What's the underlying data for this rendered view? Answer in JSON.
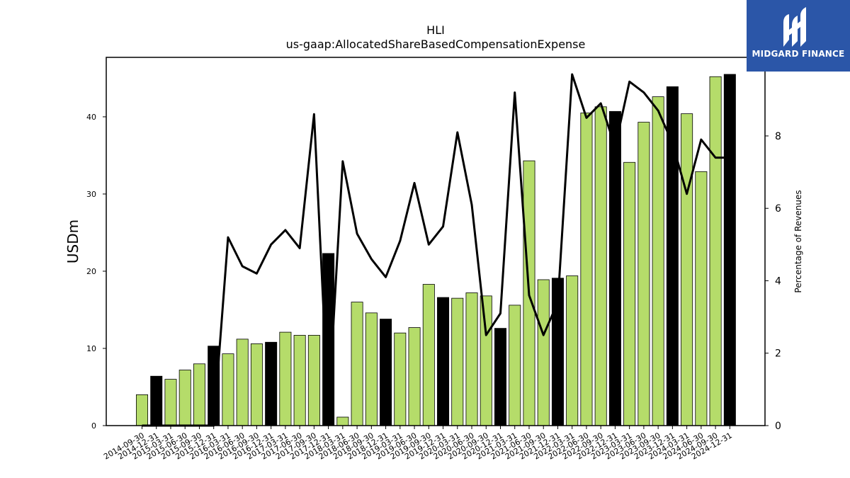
{
  "chart_data": {
    "type": "bar",
    "title": "HLI",
    "subtitle": "us-gaap:AllocatedShareBasedCompensationExpense",
    "ylabel": "USDm",
    "y2label": "Percentage of Revenues",
    "ylim": [
      0,
      47.7
    ],
    "y2lim": [
      0,
      10.17
    ],
    "yticks": [
      0,
      10,
      20,
      30,
      40
    ],
    "y2ticks": [
      0,
      2,
      4,
      6,
      8
    ],
    "categories": [
      "2014-09-30",
      "2014-12-31",
      "2015-03-31",
      "2015-06-30",
      "2015-09-30",
      "2015-12-31",
      "2016-03-31",
      "2016-06-30",
      "2016-09-30",
      "2016-12-31",
      "2017-03-31",
      "2017-06-30",
      "2017-09-30",
      "2017-12-31",
      "2018-03-31",
      "2018-06-30",
      "2018-09-30",
      "2018-12-31",
      "2019-03-31",
      "2019-06-30",
      "2019-09-30",
      "2019-12-31",
      "2020-03-31",
      "2020-06-30",
      "2020-09-30",
      "2020-12-31",
      "2021-03-31",
      "2021-06-30",
      "2021-09-30",
      "2021-12-31",
      "2022-03-31",
      "2022-06-30",
      "2022-09-30",
      "2022-12-31",
      "2023-03-31",
      "2023-06-30",
      "2023-09-30",
      "2023-12-31",
      "2024-03-31",
      "2024-06-30",
      "2024-09-30",
      "2024-12-31"
    ],
    "series": [
      {
        "type": "bar",
        "values": [
          4.0,
          6.4,
          6.0,
          7.2,
          8.0,
          10.3,
          9.3,
          11.2,
          10.6,
          10.8,
          12.1,
          11.7,
          11.7,
          22.3,
          1.1,
          16.0,
          14.6,
          13.8,
          12.0,
          12.7,
          18.3,
          16.6,
          16.5,
          17.2,
          16.8,
          12.6,
          15.6,
          34.3,
          18.9,
          19.1,
          19.4,
          40.5,
          41.3,
          40.7,
          34.1,
          39.3,
          42.6,
          43.9,
          40.4,
          32.9,
          45.2,
          45.5
        ],
        "year_end": [
          false,
          true,
          false,
          false,
          false,
          true,
          false,
          false,
          false,
          true,
          false,
          false,
          false,
          true,
          false,
          false,
          false,
          true,
          false,
          false,
          false,
          true,
          false,
          false,
          false,
          true,
          false,
          false,
          false,
          true,
          false,
          false,
          false,
          true,
          false,
          false,
          false,
          true,
          false,
          false,
          false,
          true
        ]
      },
      {
        "type": "line",
        "axis": "y2",
        "values": [
          0.0,
          0.0,
          0.0,
          0.0,
          0.0,
          0.0,
          5.2,
          4.4,
          4.2,
          5.0,
          5.4,
          4.9,
          8.6,
          0.4,
          7.3,
          5.3,
          4.6,
          4.1,
          5.1,
          6.7,
          5.0,
          5.5,
          8.1,
          6.1,
          2.5,
          3.1,
          9.2,
          3.6,
          2.5,
          3.4,
          9.7,
          8.5,
          8.9,
          7.7,
          9.5,
          9.2,
          8.7,
          7.8,
          6.4,
          7.9,
          7.4,
          7.4
        ]
      }
    ],
    "colors": {
      "bar": "#b5dc6a",
      "bar_year_end": "#000000",
      "line": "#000000",
      "edge": "#000000"
    },
    "grid": false
  },
  "brand": {
    "name": "MIDGARD FINANCE",
    "icon": "midgard-logo-icon",
    "color": "#2b56a8"
  }
}
